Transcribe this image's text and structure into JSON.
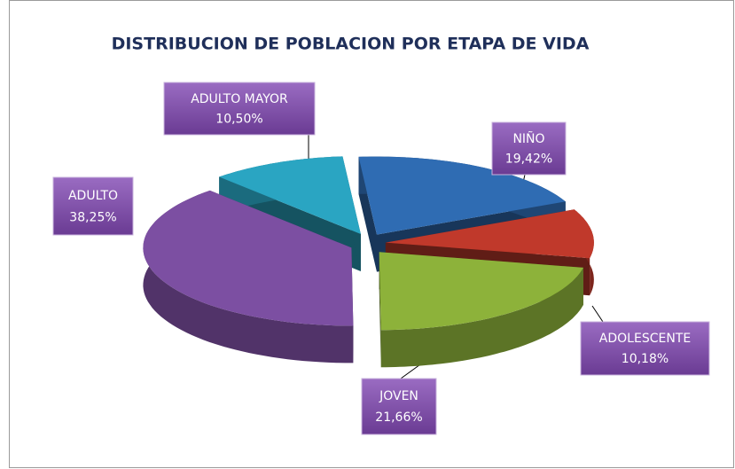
{
  "chart_data": {
    "type": "pie",
    "title": "DISTRIBUCION DE POBLACION POR ETAPA DE VIDA",
    "categories": [
      "NIÑO",
      "ADOLESCENTE",
      "JOVEN",
      "ADULTO",
      "ADULTO MAYOR"
    ],
    "values": [
      19.42,
      10.18,
      21.66,
      38.25,
      10.5
    ],
    "value_labels": [
      "19,42%",
      "10,18%",
      "21,66%",
      "38,25%",
      "10,50%"
    ],
    "colors": [
      "#2f6cb3",
      "#c0392b",
      "#8db23a",
      "#7c4fa2",
      "#2aa5c2"
    ]
  }
}
